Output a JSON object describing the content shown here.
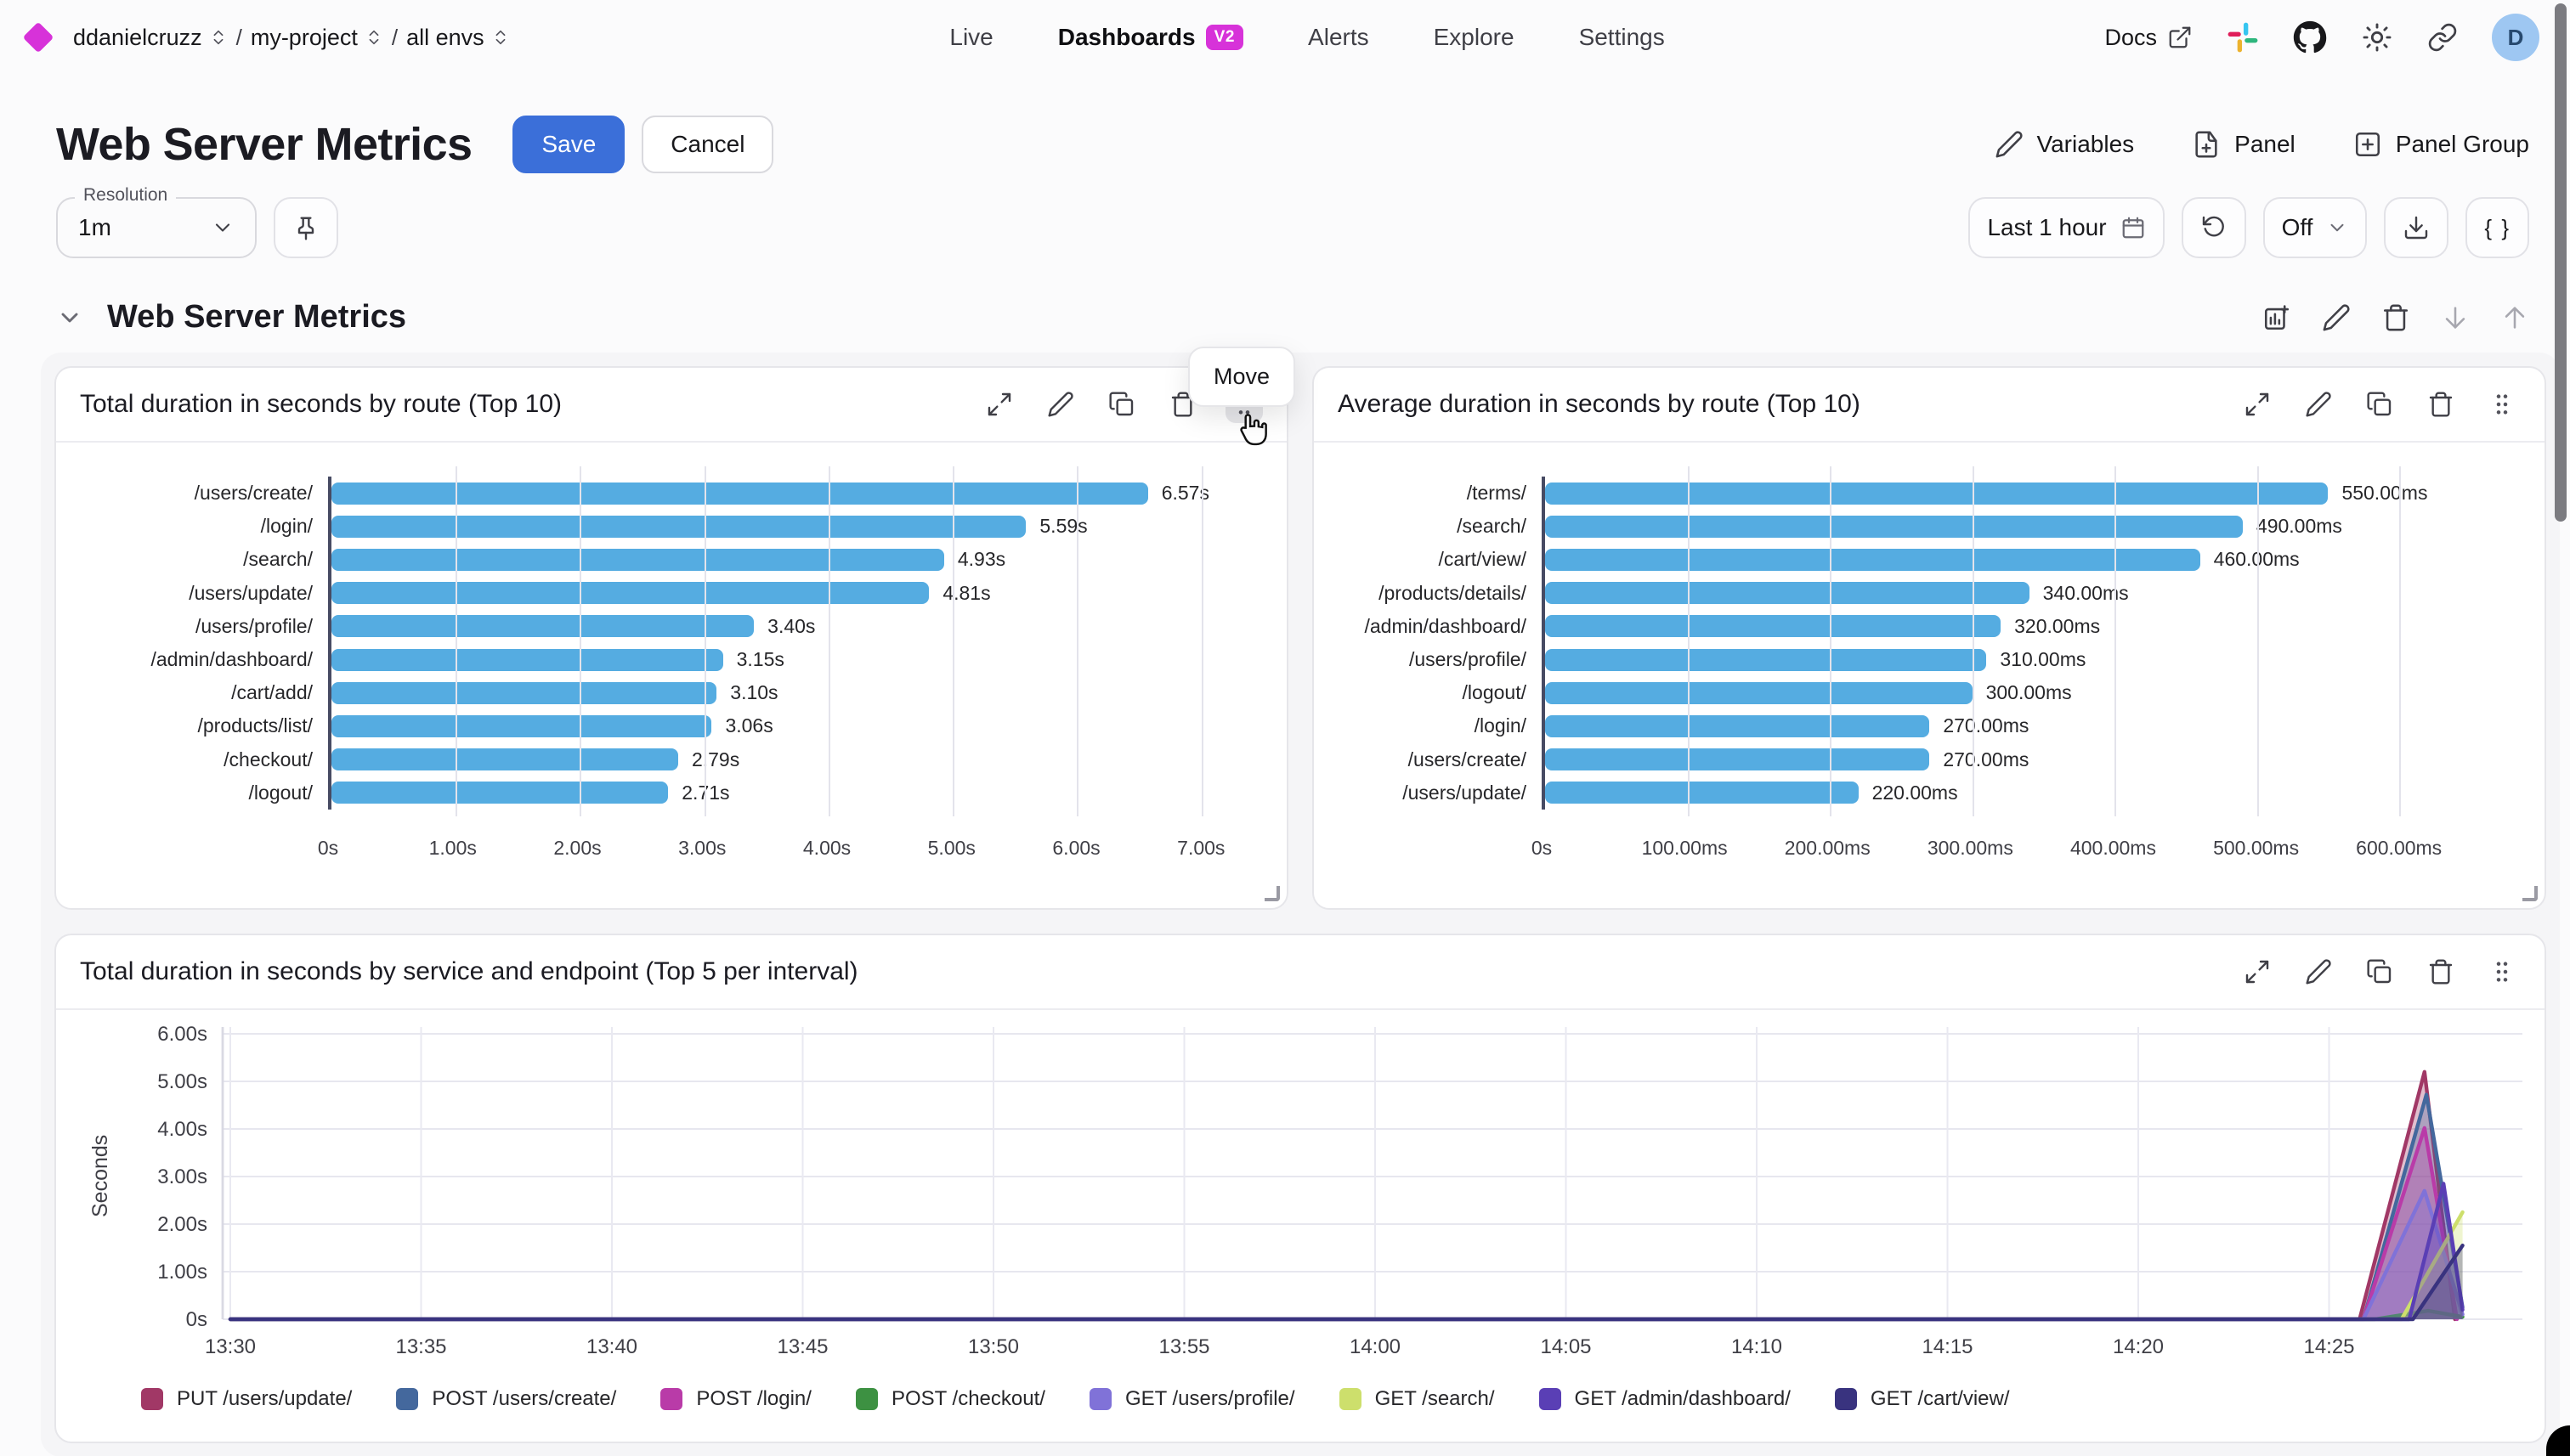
{
  "nav": {
    "breadcrumbs": [
      {
        "label": "ddanielcruzz"
      },
      {
        "label": "my-project"
      },
      {
        "label": "all envs"
      }
    ],
    "items": [
      {
        "label": "Live",
        "active": false,
        "badge": null
      },
      {
        "label": "Dashboards",
        "active": true,
        "badge": "V2"
      },
      {
        "label": "Alerts",
        "active": false,
        "badge": null
      },
      {
        "label": "Explore",
        "active": false,
        "badge": null
      },
      {
        "label": "Settings",
        "active": false,
        "badge": null
      }
    ],
    "docs_label": "Docs",
    "avatar_initial": "D"
  },
  "header": {
    "title": "Web Server Metrics",
    "save_label": "Save",
    "cancel_label": "Cancel",
    "actions": [
      {
        "label": "Variables",
        "icon": "pencil"
      },
      {
        "label": "Panel",
        "icon": "file-plus"
      },
      {
        "label": "Panel Group",
        "icon": "plus-square"
      }
    ]
  },
  "controls": {
    "resolution_label": "Resolution",
    "resolution_value": "1m",
    "time_range": "Last 1 hour",
    "auto_refresh": "Off",
    "braces_label": "{ }"
  },
  "section": {
    "title": "Web Server Metrics",
    "move_tooltip": "Move"
  },
  "colors": {
    "accent_magenta": "#d732d9",
    "primary_blue": "#3b6fd9",
    "bar_blue": "#55ace1",
    "axis_dark": "#474b63"
  },
  "chart_data": [
    {
      "type": "bar",
      "orientation": "horizontal",
      "title": "Total duration in seconds by route (Top 10)",
      "categories": [
        "/users/create/",
        "/login/",
        "/search/",
        "/users/update/",
        "/users/profile/",
        "/admin/dashboard/",
        "/cart/add/",
        "/products/list/",
        "/checkout/",
        "/logout/"
      ],
      "values": [
        6.57,
        5.59,
        4.93,
        4.81,
        3.4,
        3.15,
        3.1,
        3.06,
        2.79,
        2.71
      ],
      "value_labels": [
        "6.57s",
        "5.59s",
        "4.93s",
        "4.81s",
        "3.40s",
        "3.15s",
        "3.10s",
        "3.06s",
        "2.79s",
        "2.71s"
      ],
      "axis_max": 7.55,
      "ticks": [
        {
          "v": 0,
          "label": "0s"
        },
        {
          "v": 1,
          "label": "1.00s"
        },
        {
          "v": 2,
          "label": "2.00s"
        },
        {
          "v": 3,
          "label": "3.00s"
        },
        {
          "v": 4,
          "label": "4.00s"
        },
        {
          "v": 5,
          "label": "5.00s"
        },
        {
          "v": 6,
          "label": "6.00s"
        },
        {
          "v": 7,
          "label": "7.00s"
        }
      ]
    },
    {
      "type": "bar",
      "orientation": "horizontal",
      "title": "Average duration in seconds by route (Top 10)",
      "categories": [
        "/terms/",
        "/search/",
        "/cart/view/",
        "/products/details/",
        "/admin/dashboard/",
        "/users/profile/",
        "/logout/",
        "/login/",
        "/users/create/",
        "/users/update/"
      ],
      "values": [
        550,
        490,
        460,
        340,
        320,
        310,
        300,
        270,
        270,
        220
      ],
      "value_labels": [
        "550.00ms",
        "490.00ms",
        "460.00ms",
        "340.00ms",
        "320.00ms",
        "310.00ms",
        "300.00ms",
        "270.00ms",
        "270.00ms",
        "220.00ms"
      ],
      "axis_max": 690,
      "ticks": [
        {
          "v": 0,
          "label": "0s"
        },
        {
          "v": 100,
          "label": "100.00ms"
        },
        {
          "v": 200,
          "label": "200.00ms"
        },
        {
          "v": 300,
          "label": "300.00ms"
        },
        {
          "v": 400,
          "label": "400.00ms"
        },
        {
          "v": 500,
          "label": "500.00ms"
        },
        {
          "v": 600,
          "label": "600.00ms"
        }
      ]
    },
    {
      "type": "area",
      "title": "Total duration in seconds by service and endpoint (Top 5 per interval)",
      "ylabel": "Seconds",
      "ylim": [
        0,
        6
      ],
      "y_ticks": [
        {
          "v": 0,
          "label": "0s"
        },
        {
          "v": 1,
          "label": "1.00s"
        },
        {
          "v": 2,
          "label": "2.00s"
        },
        {
          "v": 3,
          "label": "3.00s"
        },
        {
          "v": 4,
          "label": "4.00s"
        },
        {
          "v": 5,
          "label": "5.00s"
        },
        {
          "v": 6,
          "label": "6.00s"
        }
      ],
      "x_ticks": [
        "13:30",
        "13:35",
        "13:40",
        "13:45",
        "13:50",
        "13:55",
        "14:00",
        "14:05",
        "14:10",
        "14:15",
        "14:20",
        "14:25"
      ],
      "x_tick_interval_min": 5,
      "x_domain_min": [
        0,
        60
      ],
      "series": [
        {
          "name": "PUT /users/update/",
          "color": "#a13866",
          "points": [
            [
              0,
              0
            ],
            [
              55.8,
              0
            ],
            [
              57.5,
              5.2
            ],
            [
              58.3,
              0
            ]
          ]
        },
        {
          "name": "POST /users/create/",
          "color": "#44689d",
          "points": [
            [
              0,
              0
            ],
            [
              55.9,
              0
            ],
            [
              57.55,
              4.72
            ],
            [
              58.5,
              0.25
            ]
          ]
        },
        {
          "name": "POST /login/",
          "color": "#b93ba8",
          "points": [
            [
              0,
              0
            ],
            [
              55.9,
              0
            ],
            [
              57.5,
              4.02
            ],
            [
              58.35,
              0
            ]
          ]
        },
        {
          "name": "POST /checkout/",
          "color": "#3d9142",
          "points": [
            [
              0,
              0
            ],
            [
              56.2,
              0
            ],
            [
              57.6,
              0.18
            ],
            [
              58.5,
              0.05
            ]
          ]
        },
        {
          "name": "GET /users/profile/",
          "color": "#8072d8",
          "points": [
            [
              0,
              0
            ],
            [
              55.9,
              0
            ],
            [
              57.5,
              2.7
            ],
            [
              58.5,
              0.1
            ]
          ]
        },
        {
          "name": "GET /search/",
          "color": "#cddf6c",
          "points": [
            [
              0,
              0
            ],
            [
              56.9,
              0
            ],
            [
              58.5,
              2.25
            ]
          ]
        },
        {
          "name": "GET /admin/dashboard/",
          "color": "#5a3fb5",
          "points": [
            [
              0,
              0
            ],
            [
              57.1,
              0
            ],
            [
              58.0,
              2.85
            ],
            [
              58.5,
              0.2
            ]
          ]
        },
        {
          "name": "GET /cart/view/",
          "color": "#39337f",
          "points": [
            [
              0,
              0
            ],
            [
              57.2,
              0
            ],
            [
              58.5,
              1.55
            ]
          ]
        }
      ]
    }
  ]
}
